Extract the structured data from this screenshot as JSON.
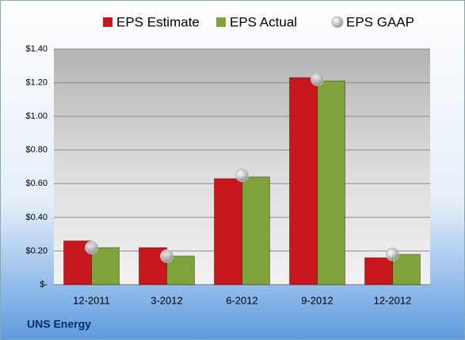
{
  "chart_data": {
    "type": "bar",
    "categories": [
      "12-2011",
      "3-2012",
      "6-2012",
      "9-2012",
      "12-2012"
    ],
    "series": [
      {
        "name": "EPS Estimate",
        "color": "#c8161d",
        "values": [
          0.26,
          0.22,
          0.63,
          1.23,
          0.16
        ]
      },
      {
        "name": "EPS Actual",
        "color": "#7fa33a",
        "values": [
          0.22,
          0.17,
          0.64,
          1.21,
          0.18
        ]
      },
      {
        "name": "EPS GAAP",
        "color": "#b8bcc4",
        "type": "scatter",
        "values": [
          0.22,
          0.17,
          0.65,
          1.22,
          0.18
        ]
      }
    ],
    "ylim": [
      0,
      1.4
    ],
    "yticks": [
      {
        "value": 0,
        "label": "$-"
      },
      {
        "value": 0.2,
        "label": "$0.20"
      },
      {
        "value": 0.4,
        "label": "$0.40"
      },
      {
        "value": 0.6,
        "label": "$0.60"
      },
      {
        "value": 0.8,
        "label": "$0.80"
      },
      {
        "value": 1.0,
        "label": "$1.00"
      },
      {
        "value": 1.2,
        "label": "$1.20"
      },
      {
        "value": 1.4,
        "label": "$1.40"
      }
    ],
    "grid": true,
    "legend": "top",
    "caption": "UNS Energy"
  }
}
